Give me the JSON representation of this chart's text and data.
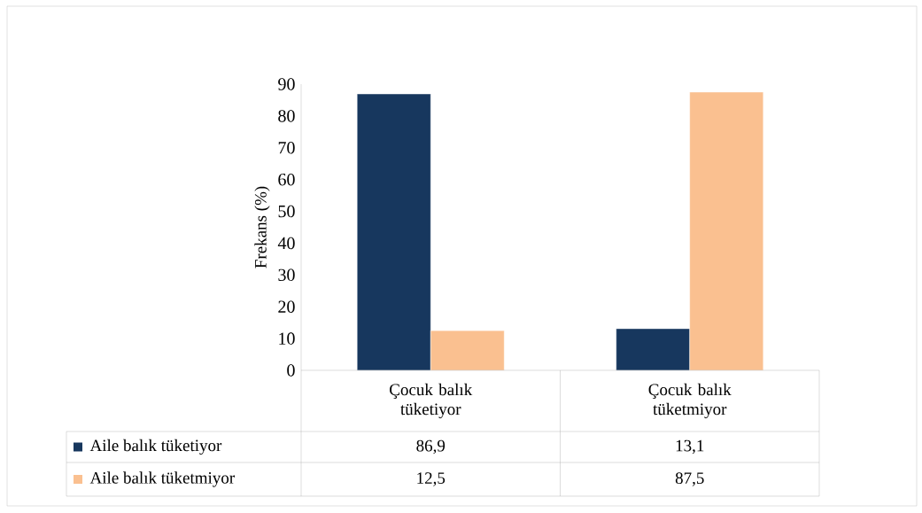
{
  "chart_data": {
    "type": "bar",
    "ylabel": "Frekans (%)",
    "categories": [
      "Çocuk balık tüketiyor",
      "Çocuk balık tüketmiyor"
    ],
    "series": [
      {
        "name": "Aile balık tüketiyor",
        "color": "#17375e",
        "values": [
          86.9,
          13.1
        ],
        "value_labels": [
          "86,9",
          "13,1"
        ]
      },
      {
        "name": "Aile balık tüketmiyor",
        "color": "#fac090",
        "values": [
          12.5,
          87.5
        ],
        "value_labels": [
          "12,5",
          "87,5"
        ]
      }
    ],
    "ylim": [
      0,
      90
    ],
    "yticks": [
      0,
      10,
      20,
      30,
      40,
      50,
      60,
      70,
      80,
      90
    ],
    "grid": false,
    "legend": "bottom"
  }
}
